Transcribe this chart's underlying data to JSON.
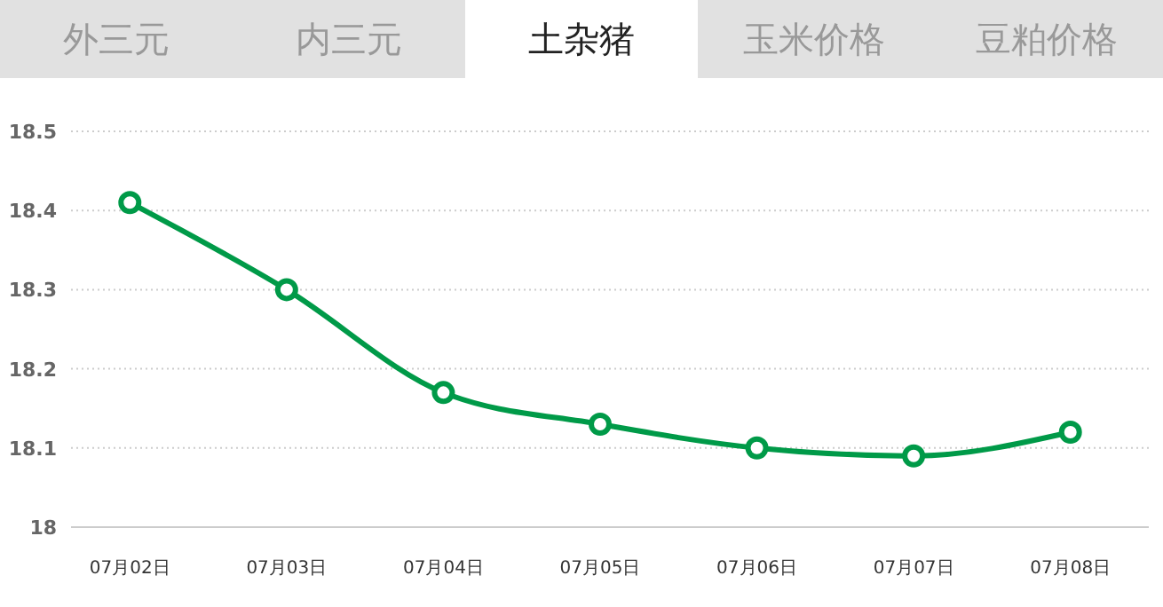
{
  "chart_data": {
    "type": "line",
    "title": "土杂猪",
    "annotations": [
      "外三元",
      "内三元",
      "玉米价格",
      "豆粕价格"
    ],
    "categories": [
      "07月02日",
      "07月03日",
      "07月04日",
      "07月05日",
      "07月06日",
      "07月07日",
      "07月08日"
    ],
    "series": [
      {
        "color": "#009a48",
        "values": [
          18.41,
          18.3,
          18.17,
          18.13,
          18.1,
          18.09,
          18.12
        ]
      }
    ],
    "ylim": [
      18,
      18.5
    ],
    "yticks": [
      18,
      18.1,
      18.2,
      18.3,
      18.4,
      18.5
    ],
    "grid": "y",
    "marker": "circle",
    "line_style": "solid"
  }
}
